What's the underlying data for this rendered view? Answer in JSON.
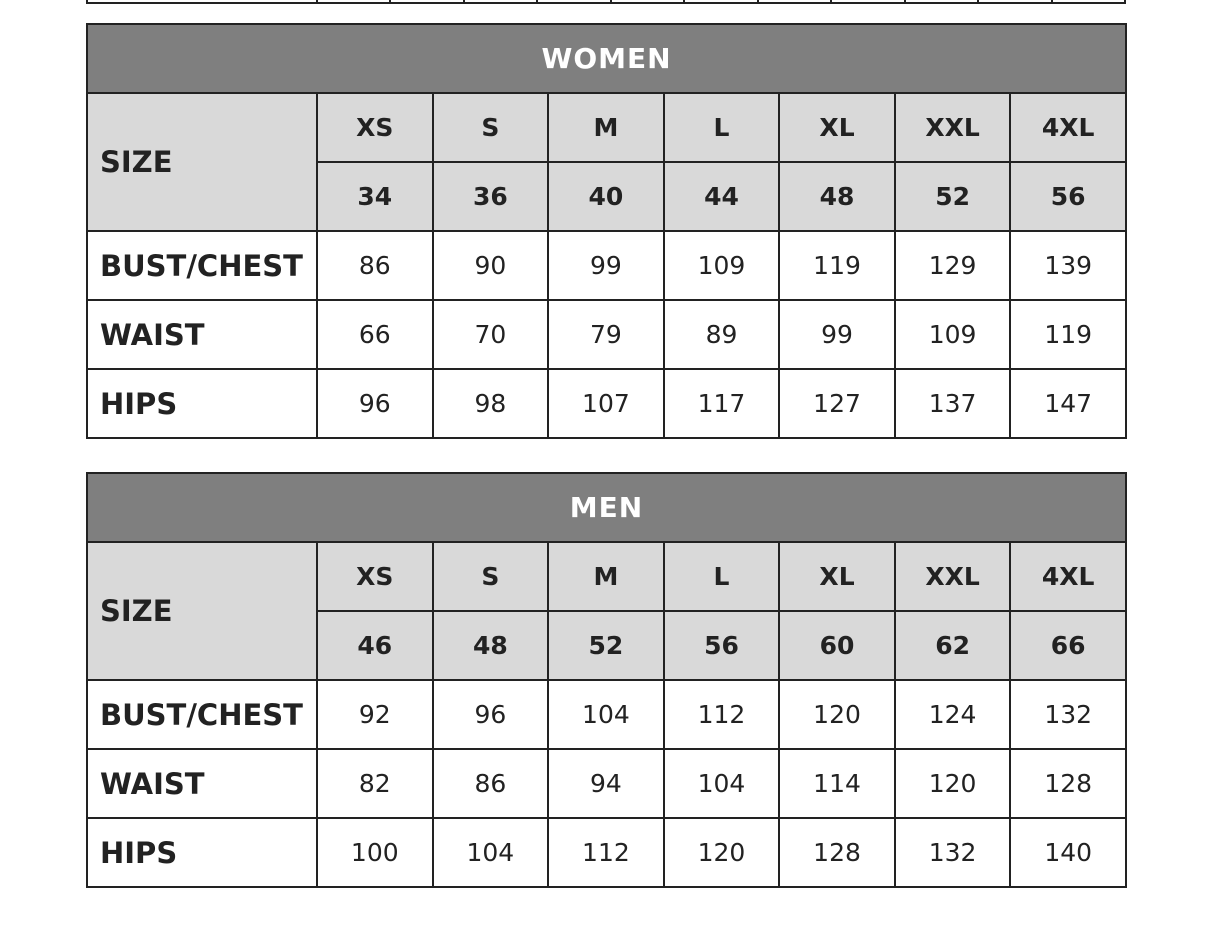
{
  "tables": [
    {
      "title": "WOMEN",
      "size_label": "SIZE",
      "sizes": [
        "XS",
        "S",
        "M",
        "L",
        "XL",
        "XXL",
        "4XL"
      ],
      "numeric_sizes": [
        "34",
        "36",
        "40",
        "44",
        "48",
        "52",
        "56"
      ],
      "rows": [
        {
          "label": "BUST/CHEST",
          "values": [
            "86",
            "90",
            "99",
            "109",
            "119",
            "129",
            "139"
          ]
        },
        {
          "label": "WAIST",
          "values": [
            "66",
            "70",
            "79",
            "89",
            "99",
            "109",
            "119"
          ]
        },
        {
          "label": "HIPS",
          "values": [
            "96",
            "98",
            "107",
            "117",
            "127",
            "137",
            "147"
          ]
        }
      ]
    },
    {
      "title": "MEN",
      "size_label": "SIZE",
      "sizes": [
        "XS",
        "S",
        "M",
        "L",
        "XL",
        "XXL",
        "4XL"
      ],
      "numeric_sizes": [
        "46",
        "48",
        "52",
        "56",
        "60",
        "62",
        "66"
      ],
      "rows": [
        {
          "label": "BUST/CHEST",
          "values": [
            "92",
            "96",
            "104",
            "112",
            "120",
            "124",
            "132"
          ]
        },
        {
          "label": "WAIST",
          "values": [
            "82",
            "86",
            "94",
            "104",
            "114",
            "120",
            "128"
          ]
        },
        {
          "label": "HIPS",
          "values": [
            "100",
            "104",
            "112",
            "120",
            "128",
            "132",
            "140"
          ]
        }
      ]
    }
  ],
  "colors": {
    "title_bg": "#7f7f7f",
    "header_bg": "#d9d9d9",
    "border": "#222222"
  }
}
